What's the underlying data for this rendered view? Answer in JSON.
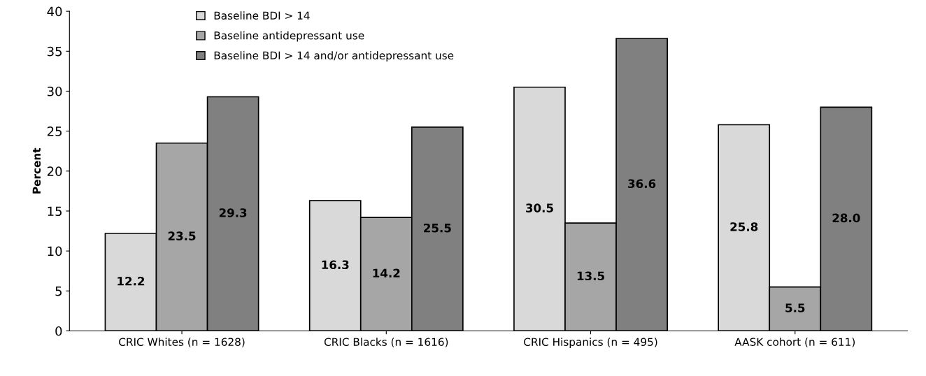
{
  "chart_data": {
    "type": "bar",
    "ylabel": "Percent",
    "categories": [
      "CRIC Whites (n = 1628)",
      "CRIC Blacks (n = 1616)",
      "CRIC Hispanics (n = 495)",
      "AASK cohort (n = 611)"
    ],
    "series": [
      {
        "name": "Baseline BDI > 14",
        "color": "#d9d9d9",
        "values": [
          12.2,
          16.3,
          30.5,
          25.8
        ],
        "value_labels": [
          "12.2",
          "16.3",
          "30.5",
          "25.8"
        ]
      },
      {
        "name": "Baseline antidepressant use",
        "color": "#a6a6a6",
        "values": [
          23.5,
          14.2,
          13.5,
          5.5
        ],
        "value_labels": [
          "23.5",
          "14.2",
          "13.5",
          "5.5"
        ]
      },
      {
        "name": "Baseline BDI > 14 and/or antidepressant use",
        "color": "#808080",
        "values": [
          29.3,
          25.5,
          36.6,
          28.0
        ],
        "value_labels": [
          "29.3",
          "25.5",
          "36.6",
          "28.0"
        ]
      }
    ],
    "ylim": [
      0,
      40
    ],
    "yticks": [
      0,
      5,
      10,
      15,
      20,
      25,
      30,
      35,
      40
    ],
    "grid": false,
    "legend": "top left"
  }
}
